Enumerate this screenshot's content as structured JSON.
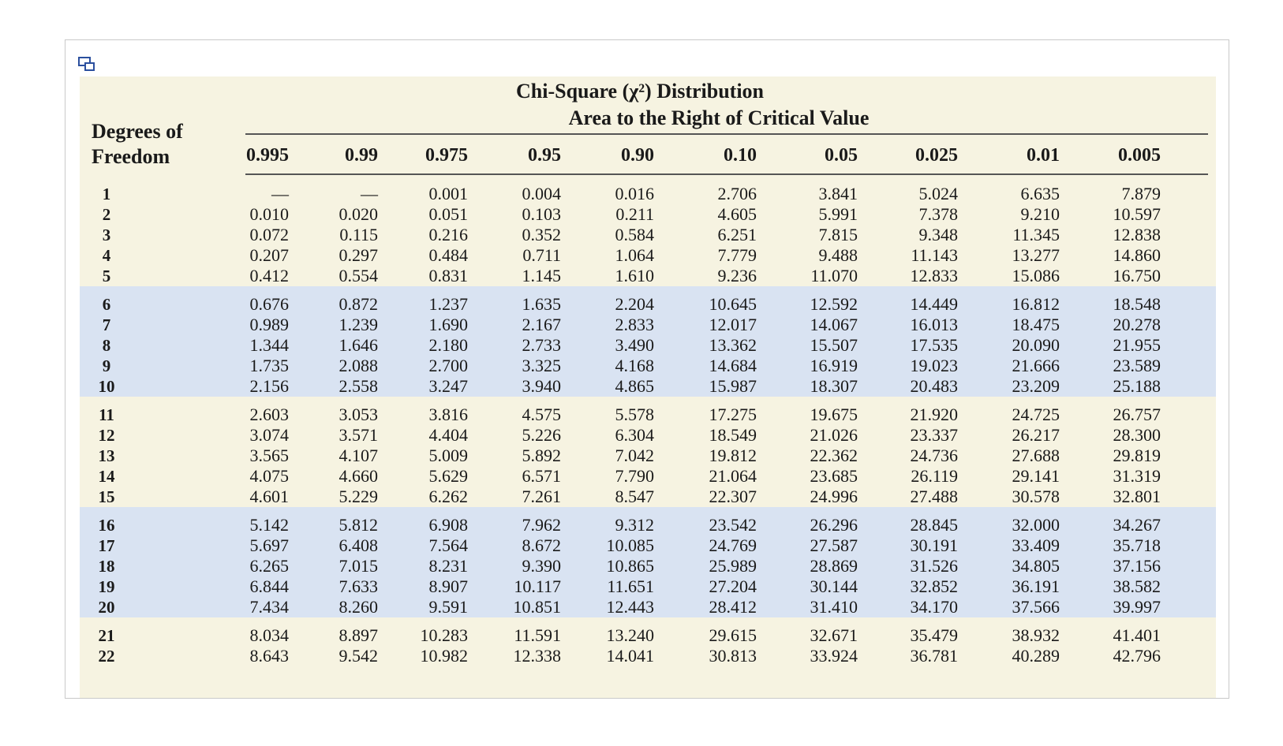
{
  "table": {
    "title": "Chi-Square (χ²) Distribution",
    "subtitle": "Area to the Right of Critical Value",
    "df_label_line1": "Degrees of",
    "df_label_line2": "Freedom",
    "columns": [
      "0.995",
      "0.99",
      "0.975",
      "0.95",
      "0.90",
      "0.10",
      "0.05",
      "0.025",
      "0.01",
      "0.005"
    ],
    "rows": [
      {
        "df": "1",
        "values": [
          "—",
          "—",
          "0.001",
          "0.004",
          "0.016",
          "2.706",
          "3.841",
          "5.024",
          "6.635",
          "7.879"
        ]
      },
      {
        "df": "2",
        "values": [
          "0.010",
          "0.020",
          "0.051",
          "0.103",
          "0.211",
          "4.605",
          "5.991",
          "7.378",
          "9.210",
          "10.597"
        ]
      },
      {
        "df": "3",
        "values": [
          "0.072",
          "0.115",
          "0.216",
          "0.352",
          "0.584",
          "6.251",
          "7.815",
          "9.348",
          "11.345",
          "12.838"
        ]
      },
      {
        "df": "4",
        "values": [
          "0.207",
          "0.297",
          "0.484",
          "0.711",
          "1.064",
          "7.779",
          "9.488",
          "11.143",
          "13.277",
          "14.860"
        ]
      },
      {
        "df": "5",
        "values": [
          "0.412",
          "0.554",
          "0.831",
          "1.145",
          "1.610",
          "9.236",
          "11.070",
          "12.833",
          "15.086",
          "16.750"
        ]
      },
      {
        "df": "6",
        "values": [
          "0.676",
          "0.872",
          "1.237",
          "1.635",
          "2.204",
          "10.645",
          "12.592",
          "14.449",
          "16.812",
          "18.548"
        ]
      },
      {
        "df": "7",
        "values": [
          "0.989",
          "1.239",
          "1.690",
          "2.167",
          "2.833",
          "12.017",
          "14.067",
          "16.013",
          "18.475",
          "20.278"
        ]
      },
      {
        "df": "8",
        "values": [
          "1.344",
          "1.646",
          "2.180",
          "2.733",
          "3.490",
          "13.362",
          "15.507",
          "17.535",
          "20.090",
          "21.955"
        ]
      },
      {
        "df": "9",
        "values": [
          "1.735",
          "2.088",
          "2.700",
          "3.325",
          "4.168",
          "14.684",
          "16.919",
          "19.023",
          "21.666",
          "23.589"
        ]
      },
      {
        "df": "10",
        "values": [
          "2.156",
          "2.558",
          "3.247",
          "3.940",
          "4.865",
          "15.987",
          "18.307",
          "20.483",
          "23.209",
          "25.188"
        ]
      },
      {
        "df": "11",
        "values": [
          "2.603",
          "3.053",
          "3.816",
          "4.575",
          "5.578",
          "17.275",
          "19.675",
          "21.920",
          "24.725",
          "26.757"
        ]
      },
      {
        "df": "12",
        "values": [
          "3.074",
          "3.571",
          "4.404",
          "5.226",
          "6.304",
          "18.549",
          "21.026",
          "23.337",
          "26.217",
          "28.300"
        ]
      },
      {
        "df": "13",
        "values": [
          "3.565",
          "4.107",
          "5.009",
          "5.892",
          "7.042",
          "19.812",
          "22.362",
          "24.736",
          "27.688",
          "29.819"
        ]
      },
      {
        "df": "14",
        "values": [
          "4.075",
          "4.660",
          "5.629",
          "6.571",
          "7.790",
          "21.064",
          "23.685",
          "26.119",
          "29.141",
          "31.319"
        ]
      },
      {
        "df": "15",
        "values": [
          "4.601",
          "5.229",
          "6.262",
          "7.261",
          "8.547",
          "22.307",
          "24.996",
          "27.488",
          "30.578",
          "32.801"
        ]
      },
      {
        "df": "16",
        "values": [
          "5.142",
          "5.812",
          "6.908",
          "7.962",
          "9.312",
          "23.542",
          "26.296",
          "28.845",
          "32.000",
          "34.267"
        ]
      },
      {
        "df": "17",
        "values": [
          "5.697",
          "6.408",
          "7.564",
          "8.672",
          "10.085",
          "24.769",
          "27.587",
          "30.191",
          "33.409",
          "35.718"
        ]
      },
      {
        "df": "18",
        "values": [
          "6.265",
          "7.015",
          "8.231",
          "9.390",
          "10.865",
          "25.989",
          "28.869",
          "31.526",
          "34.805",
          "37.156"
        ]
      },
      {
        "df": "19",
        "values": [
          "6.844",
          "7.633",
          "8.907",
          "10.117",
          "11.651",
          "27.204",
          "30.144",
          "32.852",
          "36.191",
          "38.582"
        ]
      },
      {
        "df": "20",
        "values": [
          "7.434",
          "8.260",
          "9.591",
          "10.851",
          "12.443",
          "28.412",
          "31.410",
          "34.170",
          "37.566",
          "39.997"
        ]
      },
      {
        "df": "21",
        "values": [
          "8.034",
          "8.897",
          "10.283",
          "11.591",
          "13.240",
          "29.615",
          "32.671",
          "35.479",
          "38.932",
          "41.401"
        ]
      },
      {
        "df": "22",
        "values": [
          "8.643",
          "9.542",
          "10.982",
          "12.338",
          "14.041",
          "30.813",
          "33.924",
          "36.781",
          "40.289",
          "42.796"
        ]
      }
    ]
  },
  "colors": {
    "cream": "#f6f3e1",
    "blue": "#d9e3f2",
    "icon": "#2b4f9e"
  },
  "icons": {
    "popout": "popout-icon"
  }
}
